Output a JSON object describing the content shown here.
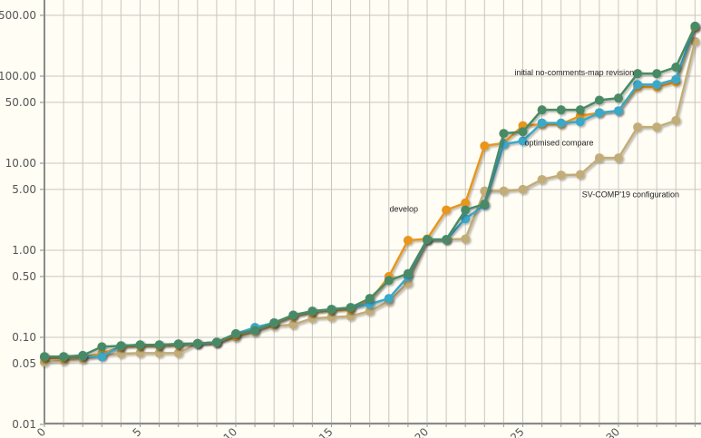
{
  "chart_data": {
    "type": "line",
    "title": "",
    "xlabel": "",
    "ylabel": "",
    "y_scale": "log",
    "ylim": [
      0.01,
      500
    ],
    "xlim": [
      0,
      34
    ],
    "grid": true,
    "y_ticks": [
      "0.01",
      "0.05",
      "0.10",
      "0.50",
      "1.00",
      "5.00",
      "10.00",
      "50.00",
      "100.00",
      "500.00"
    ],
    "y_tick_values": [
      0.01,
      0.05,
      0.1,
      0.5,
      1,
      5,
      10,
      50,
      100,
      500
    ],
    "x_ticks": [
      "0",
      "5",
      "10",
      "15",
      "20",
      "25",
      "30"
    ],
    "x_tick_values": [
      0,
      5,
      10,
      15,
      20,
      25,
      30
    ],
    "x": [
      0,
      1,
      2,
      3,
      4,
      5,
      6,
      7,
      8,
      9,
      10,
      11,
      12,
      13,
      14,
      15,
      16,
      17,
      18,
      19,
      20,
      21,
      22,
      23,
      24,
      25,
      26,
      27,
      28,
      29,
      30,
      31,
      32,
      33,
      34
    ],
    "series": [
      {
        "name": "develop",
        "color": "#e8961c",
        "values": [
          0.058,
          0.058,
          0.06,
          0.065,
          0.078,
          0.08,
          0.08,
          0.082,
          0.085,
          0.087,
          0.105,
          0.125,
          0.145,
          0.175,
          0.195,
          0.205,
          0.21,
          0.26,
          0.5,
          1.3,
          1.35,
          2.9,
          3.5,
          15.8,
          17,
          27,
          28,
          28,
          35,
          38,
          40,
          75,
          75,
          86,
          360
        ]
      },
      {
        "name": "optimised compare",
        "color": "#3aa8c8",
        "values": [
          0.06,
          0.06,
          0.061,
          0.06,
          0.08,
          0.082,
          0.082,
          0.084,
          0.085,
          0.088,
          0.11,
          0.13,
          0.147,
          0.18,
          0.2,
          0.21,
          0.22,
          0.24,
          0.28,
          0.5,
          1.33,
          1.33,
          2.3,
          3.3,
          16.5,
          18,
          29,
          29,
          30,
          38,
          40,
          80,
          80,
          92,
          375
        ]
      },
      {
        "name": "initial no-comments-map revision",
        "color": "#4a8a66",
        "values": [
          0.06,
          0.06,
          0.062,
          0.078,
          0.08,
          0.082,
          0.082,
          0.084,
          0.085,
          0.088,
          0.11,
          0.12,
          0.147,
          0.18,
          0.2,
          0.21,
          0.22,
          0.28,
          0.45,
          0.54,
          1.33,
          1.33,
          2.9,
          3.4,
          22,
          23,
          41,
          41,
          41,
          53,
          56,
          107,
          107,
          127,
          375
        ]
      },
      {
        "name": "SV-COMP'19 configuration",
        "color": "#c2ad78",
        "values": [
          0.052,
          0.054,
          0.056,
          0.062,
          0.065,
          0.066,
          0.066,
          0.066,
          0.085,
          0.087,
          0.1,
          0.115,
          0.135,
          0.14,
          0.165,
          0.17,
          0.175,
          0.2,
          0.26,
          0.42,
          1.3,
          1.33,
          1.35,
          4.8,
          4.8,
          5.0,
          6.5,
          7.3,
          7.4,
          11.5,
          11.5,
          26,
          26,
          31,
          250
        ]
      }
    ],
    "annotations": [
      {
        "text": "develop",
        "series": 0,
        "at_x": 20
      },
      {
        "text": "optimised compare",
        "series": 1,
        "at_x": 25
      },
      {
        "text": "initial no-comments-map revision",
        "series": 2,
        "at_x": 31
      },
      {
        "text": "SV-COMP'19 configuration",
        "series": 3,
        "at_x": 28
      }
    ]
  }
}
